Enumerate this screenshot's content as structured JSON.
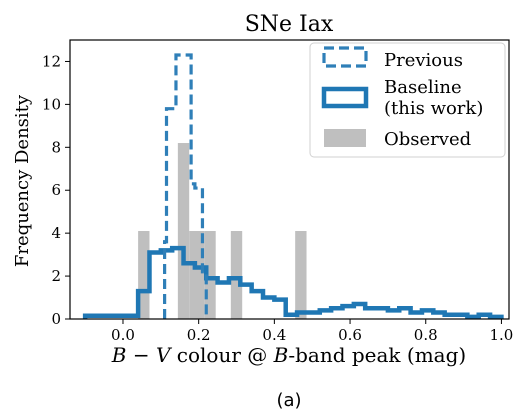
{
  "chart_data": {
    "type": "histogram",
    "title": "SNe Iax",
    "xlabel": "B − V colour @ B-band peak (mag)",
    "xlabel_parts": {
      "b": "B",
      "minus": " − ",
      "v": "V",
      "mid": " colour @ ",
      "b2": "B",
      "end": "-band peak (mag)"
    },
    "ylabel": "Frequency Density",
    "caption": "(a)",
    "xlim": [
      -0.14,
      1.02
    ],
    "ylim": [
      0,
      13
    ],
    "x_ticks": [
      0.0,
      0.2,
      0.4,
      0.6,
      0.8,
      1.0
    ],
    "x_tick_labels": [
      "0.0",
      "0.2",
      "0.4",
      "0.6",
      "0.8",
      "1.0"
    ],
    "y_ticks": [
      0,
      2,
      4,
      6,
      8,
      10,
      12
    ],
    "y_tick_labels": [
      "0",
      "2",
      "4",
      "6",
      "8",
      "10",
      "12"
    ],
    "grid": false,
    "legend_position": "upper-right",
    "colors": {
      "previous": "#2f7fb8",
      "baseline": "#1f77b4",
      "observed": "#bfbfbf"
    },
    "series": [
      {
        "name": "Previous",
        "style": "step-dashed",
        "edges": [
          0.11,
          0.115,
          0.14,
          0.16,
          0.18,
          0.19,
          0.21,
          0.22
        ],
        "values": [
          3.6,
          9.8,
          12.3,
          12.3,
          6.3,
          6.1,
          2.2
        ]
      },
      {
        "name": "Baseline",
        "name_line2": "(this work)",
        "style": "step-solid",
        "edges": [
          -0.1,
          -0.06,
          -0.02,
          0.02,
          0.04,
          0.07,
          0.1,
          0.13,
          0.16,
          0.19,
          0.22,
          0.25,
          0.28,
          0.31,
          0.34,
          0.37,
          0.4,
          0.43,
          0.46,
          0.49,
          0.52,
          0.55,
          0.58,
          0.61,
          0.64,
          0.67,
          0.7,
          0.73,
          0.76,
          0.79,
          0.82,
          0.85,
          0.88,
          0.91,
          0.94,
          0.97,
          1.0
        ],
        "values": [
          0.15,
          0.15,
          0.15,
          0.15,
          1.3,
          3.1,
          3.2,
          3.3,
          2.6,
          2.4,
          1.9,
          1.7,
          1.9,
          1.6,
          1.3,
          1.0,
          0.9,
          0.2,
          0.3,
          0.3,
          0.4,
          0.5,
          0.6,
          0.7,
          0.5,
          0.5,
          0.4,
          0.5,
          0.3,
          0.4,
          0.3,
          0.2,
          0.2,
          0.1,
          0.2,
          0.1
        ]
      },
      {
        "name": "Observed",
        "style": "bar",
        "bars": [
          {
            "x0": 0.04,
            "x1": 0.07,
            "value": 4.1
          },
          {
            "x0": 0.145,
            "x1": 0.175,
            "value": 8.2
          },
          {
            "x0": 0.175,
            "x1": 0.215,
            "value": 4.1
          },
          {
            "x0": 0.215,
            "x1": 0.245,
            "value": 4.1
          },
          {
            "x0": 0.285,
            "x1": 0.315,
            "value": 4.1
          },
          {
            "x0": 0.455,
            "x1": 0.485,
            "value": 4.1
          }
        ]
      }
    ]
  }
}
